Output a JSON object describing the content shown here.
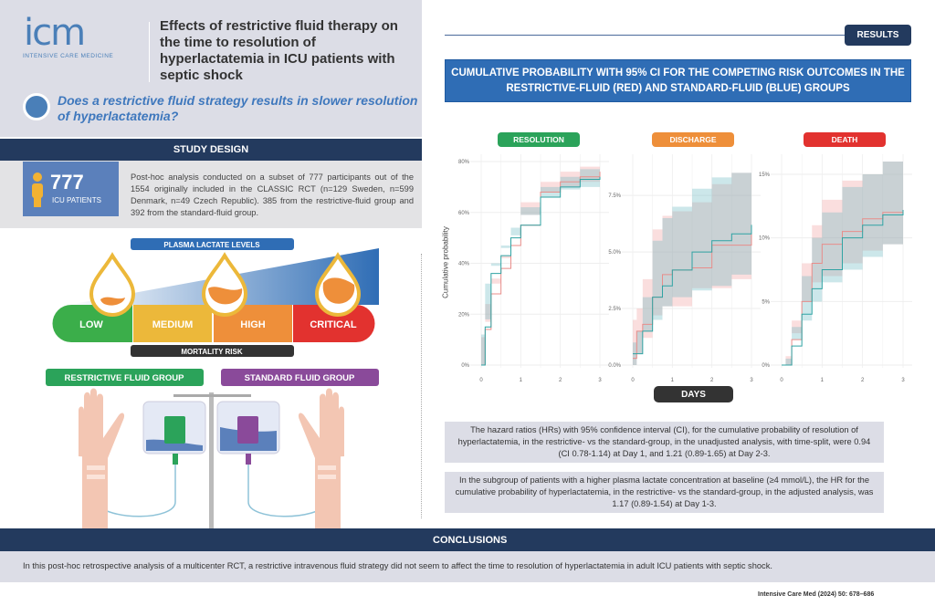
{
  "logo": {
    "mark": "icm",
    "subtitle": "INTENSIVE CARE MEDICINE"
  },
  "title": "Effects of restrictive fluid therapy on the time to resolution of hyperlactatemia in ICU patients with septic shock",
  "question": "Does a restrictive fluid strategy results in slower resolution of hyperlactatemia?",
  "study_design": {
    "heading": "STUDY DESIGN",
    "patients_count": "777",
    "patients_label": "ICU PATIENTS",
    "text": "Post-hoc analysis conducted on a subset of 777 participants out of the 1554 originally included in the CLASSIC RCT (n=129 Sweden, n=599 Denmark, n=49 Czech Republic). 385 from the restrictive-fluid group and 392 from the standard-fluid group."
  },
  "illustration": {
    "lactate_label": "PLASMA LACTATE LEVELS",
    "levels": [
      {
        "label": "LOW",
        "color": "#3bae4a"
      },
      {
        "label": "MEDIUM",
        "color": "#ecb83a"
      },
      {
        "label": "HIGH",
        "color": "#ee8f3a"
      },
      {
        "label": "CRITICAL",
        "color": "#e2322f"
      }
    ],
    "mortality_label": "MORTALITY RISK",
    "restrictive_label": "RESTRICTIVE FLUID GROUP",
    "standard_label": "STANDARD FLUID GROUP",
    "restrictive_color": "#2ba35a",
    "standard_color": "#8a4a9a"
  },
  "results": {
    "badge": "RESULTS",
    "banner": "CUMULATIVE PROBABILITY WITH 95% CI FOR THE COMPETING RISK OUTCOMES IN THE RESTRICTIVE-FLUID (RED) AND STANDARD-FLUID (BLUE) GROUPS",
    "xlabel": "DAYS",
    "ylabel": "Cumulative probability",
    "text1": "The hazard ratios (HRs) with 95% confidence interval (CI), for the cumulative probability of resolution of hyperlactatemia, in the restrictive- vs the standard-group, in the unadjusted analysis, with time-split, were 0.94 (CI 0.78-1.14) at Day 1, and 1.21 (0.89-1.65) at Day 2-3.",
    "text2": "In the subgroup of patients with a higher plasma lactate concentration at baseline (≥4 mmol/L), the HR for the cumulative probability of hyperlactatemia, in the restrictive- vs the standard-group, in the adjusted analysis, was 1.17 (0.89-1.54) at Day 1-3."
  },
  "chart_data": [
    {
      "type": "line",
      "title": "RESOLUTION",
      "title_color": "#2ba35a",
      "xlabel": "DAYS",
      "ylabel": "Cumulative probability",
      "xlim": [
        0,
        3
      ],
      "ylim": [
        0,
        80
      ],
      "grid": true,
      "xticks": [
        "0",
        "1",
        "2",
        "3"
      ],
      "yticks": [
        {
          "v": 0,
          "label": "0%"
        },
        {
          "v": 20,
          "label": "20%"
        },
        {
          "v": 40,
          "label": "40%"
        },
        {
          "v": 60,
          "label": "60%"
        },
        {
          "v": 80,
          "label": "80%"
        }
      ],
      "x": [
        0,
        0.1,
        0.25,
        0.5,
        0.75,
        1,
        1.5,
        2,
        2.5,
        3
      ],
      "series": [
        {
          "color": "#e88d8a",
          "band": "rgba(240,160,160,0.35)",
          "values": [
            0,
            14,
            28,
            38,
            47,
            55,
            68,
            72,
            74,
            76
          ],
          "lower": [
            0,
            11,
            24,
            34,
            43,
            51,
            64,
            68,
            70,
            72
          ],
          "upper": [
            0,
            17,
            32,
            42,
            51,
            59,
            72,
            76,
            78,
            80
          ]
        },
        {
          "color": "#2fa3a3",
          "band": "rgba(110,185,195,0.35)",
          "values": [
            0,
            15,
            36,
            43,
            50,
            55,
            66,
            70,
            73,
            74
          ],
          "lower": [
            0,
            12,
            32,
            39,
            46,
            51,
            62,
            66,
            69,
            70
          ],
          "upper": [
            0,
            18,
            40,
            47,
            54,
            59,
            70,
            74,
            77,
            78
          ]
        }
      ]
    },
    {
      "type": "line",
      "title": "DISCHARGE",
      "title_color": "#ee8f3a",
      "xlabel": "DAYS",
      "xlim": [
        0,
        3
      ],
      "ylim": [
        0,
        9
      ],
      "grid": true,
      "xticks": [
        "0",
        "1",
        "2",
        "3"
      ],
      "yticks": [
        {
          "v": 0,
          "label": "0.0%"
        },
        {
          "v": 2.5,
          "label": "2.5%"
        },
        {
          "v": 5,
          "label": "5.0%"
        },
        {
          "v": 7.5,
          "label": "7.5%"
        }
      ],
      "x": [
        0,
        0.1,
        0.25,
        0.5,
        0.75,
        1,
        1.5,
        2,
        2.5,
        3
      ],
      "series": [
        {
          "color": "#e88d8a",
          "band": "rgba(240,160,160,0.35)",
          "values": [
            0.3,
            1.5,
            1.8,
            3,
            4,
            4.2,
            4.3,
            5.3,
            5.3,
            5.8
          ],
          "lower": [
            0,
            0,
            0.5,
            1.2,
            2.2,
            2.6,
            2.6,
            3.4,
            3.4,
            3.8
          ],
          "upper": [
            2,
            2.5,
            3.8,
            6,
            6.6,
            6.8,
            7.2,
            8,
            8.5,
            9
          ]
        },
        {
          "color": "#2fa3a3",
          "band": "rgba(110,185,195,0.35)",
          "values": [
            0.5,
            0.5,
            1.5,
            3,
            3.5,
            4.2,
            5,
            5.5,
            5.8,
            6.2
          ],
          "lower": [
            0,
            0,
            0.5,
            1.5,
            2,
            2.6,
            3,
            3.3,
            3.5,
            4
          ],
          "upper": [
            1,
            1.5,
            3,
            5.5,
            6.5,
            7,
            7.8,
            8.3,
            8.5,
            9
          ]
        }
      ]
    },
    {
      "type": "line",
      "title": "DEATH",
      "title_color": "#e2322f",
      "xlabel": "DAYS",
      "xlim": [
        0,
        3
      ],
      "ylim": [
        0,
        16
      ],
      "grid": true,
      "xticks": [
        "0",
        "1",
        "2",
        "3"
      ],
      "yticks": [
        {
          "v": 0,
          "label": "0%"
        },
        {
          "v": 5,
          "label": "5%"
        },
        {
          "v": 10,
          "label": "10%"
        },
        {
          "v": 15,
          "label": "15%"
        }
      ],
      "x": [
        0,
        0.1,
        0.25,
        0.5,
        0.75,
        1,
        1.5,
        2,
        2.5,
        3
      ],
      "series": [
        {
          "color": "#e88d8a",
          "band": "rgba(240,160,160,0.35)",
          "values": [
            0,
            0,
            2,
            5,
            8,
            9.5,
            10.5,
            11.5,
            12,
            12.2
          ],
          "lower": [
            0,
            0,
            0.7,
            2.5,
            5,
            6.5,
            7,
            8,
            9,
            9.5
          ],
          "upper": [
            0,
            0,
            3.5,
            8,
            11,
            13,
            14.5,
            15,
            16,
            16
          ]
        },
        {
          "color": "#2fa3a3",
          "band": "rgba(110,185,195,0.35)",
          "values": [
            0,
            0,
            1.5,
            4,
            6,
            7.5,
            10,
            11,
            11.8,
            12.2
          ],
          "lower": [
            0,
            0,
            0.5,
            2,
            3.5,
            5,
            6.5,
            7.5,
            8.5,
            9.5
          ],
          "upper": [
            0,
            0,
            3,
            7,
            10,
            12,
            14,
            15,
            16,
            16
          ]
        }
      ]
    }
  ],
  "conclusions": {
    "heading": "CONCLUSIONS",
    "text": "In this post-hoc retrospective analysis of a multicenter RCT, a restrictive intravenous fluid strategy did not seem to affect the time to resolution of hyperlactatemia in adult ICU patients with septic shock."
  },
  "citation": "Intensive Care Med (2024) 50: 678–686"
}
